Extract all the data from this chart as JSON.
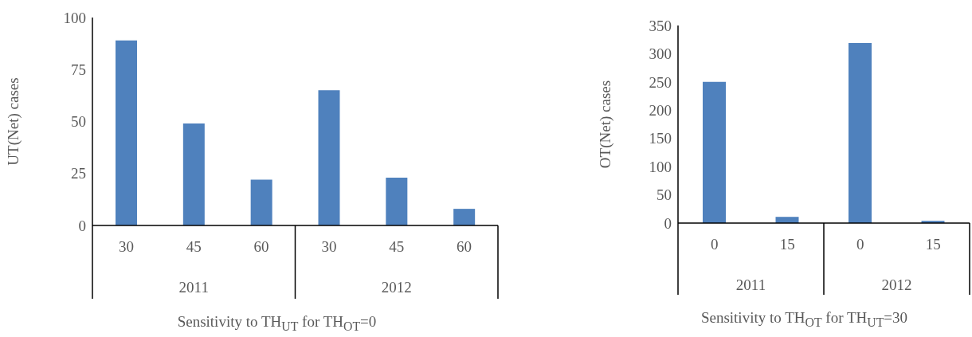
{
  "chart_data": [
    {
      "type": "bar",
      "categories": [
        "30",
        "45",
        "60",
        "30",
        "45",
        "60"
      ],
      "values": [
        89,
        49,
        22,
        65,
        23,
        8
      ],
      "color": "#4f81bd",
      "ylim": [
        0,
        100
      ],
      "yticks": [
        0,
        25,
        50,
        75,
        100
      ],
      "ylabel": "UT(Net) cases",
      "xlabel": "Sensitivity to TH$_{UT}$ for TH$_{OT}$=0",
      "annotations": [
        "2011",
        "2012"
      ]
    },
    {
      "type": "bar",
      "categories": [
        "0",
        "15",
        "0",
        "15"
      ],
      "values": [
        250,
        11,
        319,
        4
      ],
      "color": "#4f81bd",
      "ylim": [
        0,
        350
      ],
      "yticks": [
        0,
        50,
        100,
        150,
        200,
        250,
        300,
        350
      ],
      "ylabel": "OT(Net) cases",
      "xlabel": "Sensitivity to TH$_{OT}$ for TH$_{UT}$=30",
      "annotations": [
        "2011",
        "2012"
      ]
    }
  ]
}
